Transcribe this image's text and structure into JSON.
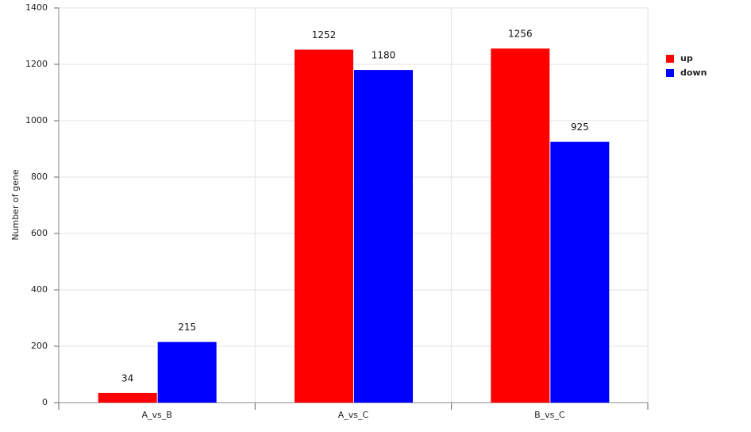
{
  "chart_data": {
    "type": "bar",
    "y_label": "Number of gene",
    "categories": [
      "A_vs_B",
      "A_vs_C",
      "B_vs_C"
    ],
    "series": [
      {
        "name": "up",
        "color": "#ff0000",
        "values": [
          34,
          1252,
          1256
        ]
      },
      {
        "name": "down",
        "color": "#0000ff",
        "values": [
          215,
          1180,
          925
        ]
      }
    ],
    "ylim": [
      0,
      1400
    ],
    "yticks": [
      0,
      200,
      400,
      600,
      800,
      1000,
      1200,
      1400
    ],
    "grid": true,
    "legend": "right"
  }
}
